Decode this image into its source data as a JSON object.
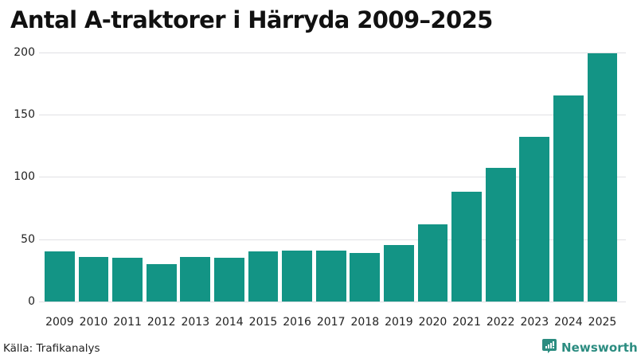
{
  "title": "Antal A-traktorer i Härryda 2009–2025",
  "source": "Källa: Trafikanalys",
  "brand": {
    "name": "Newsworthy",
    "icon": "newsworthy-logo-icon",
    "color": "#2b8c80"
  },
  "colors": {
    "bar": "#139485",
    "grid": "#e0e0e4"
  },
  "chart_data": {
    "type": "bar",
    "title": "Antal A-traktorer i Härryda 2009–2025",
    "xlabel": "",
    "ylabel": "",
    "categories": [
      "2009",
      "2010",
      "2011",
      "2012",
      "2013",
      "2014",
      "2015",
      "2016",
      "2017",
      "2018",
      "2019",
      "2020",
      "2021",
      "2022",
      "2023",
      "2024",
      "2025"
    ],
    "values": [
      40,
      36,
      35,
      30,
      36,
      35,
      40,
      41,
      41,
      39,
      45,
      62,
      88,
      107,
      132,
      165,
      199
    ],
    "ylim": [
      0,
      200
    ],
    "yticks": [
      "0",
      "50",
      "100",
      "150",
      "200"
    ],
    "grid": true,
    "legend": null
  }
}
